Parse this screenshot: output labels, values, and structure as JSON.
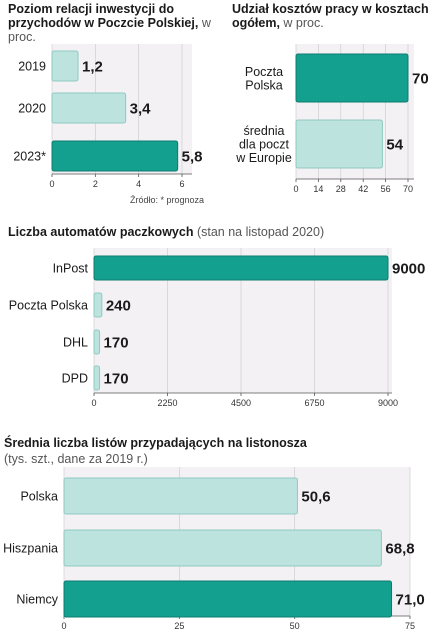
{
  "colors": {
    "bar_light": "#bde3de",
    "bar_light_stroke": "#8fcac2",
    "bar_dark": "#13a08f",
    "bar_dark_stroke": "#0d7d70",
    "plot_bg": "#f4f1f5",
    "axis": "#555555",
    "grid": "#c9c9c9"
  },
  "chart_data": [
    {
      "type": "bar",
      "orientation": "horizontal",
      "title": "Poziom relacji inwestycji do przychodów w Poczcie Polskiej,",
      "subtitle": "w proc.",
      "categories": [
        "2019",
        "2020",
        "2023*"
      ],
      "values": [
        1.2,
        3.4,
        5.8
      ],
      "value_labels": [
        "1,2",
        "3,4",
        "5,8"
      ],
      "highlight": [
        false,
        false,
        true
      ],
      "xlim": [
        0,
        6
      ],
      "xticks": [
        "0",
        "2",
        "4",
        "6"
      ],
      "grid": true,
      "source_note": "Źródło: * prognoza"
    },
    {
      "type": "bar",
      "orientation": "horizontal",
      "title": "Udział kosztów pracy w kosztach ogółem,",
      "subtitle": "w proc.",
      "categories": [
        [
          "Poczta",
          "Polska"
        ],
        [
          "średnia",
          "dla poczt",
          "w Europie"
        ]
      ],
      "values": [
        70,
        54
      ],
      "value_labels": [
        "70",
        "54"
      ],
      "highlight": [
        true,
        false
      ],
      "xlim": [
        0,
        70
      ],
      "xticks": [
        "0",
        "14",
        "28",
        "42",
        "56",
        "70"
      ],
      "grid": true
    },
    {
      "type": "bar",
      "orientation": "horizontal",
      "title": "Liczba automatów paczkowych",
      "subtitle": "(stan na listopad 2020)",
      "categories": [
        "InPost",
        "Poczta Polska",
        "DHL",
        "DPD"
      ],
      "values": [
        9000,
        240,
        170,
        170
      ],
      "value_labels": [
        "9000",
        "240",
        "170",
        "170"
      ],
      "highlight": [
        true,
        false,
        false,
        false
      ],
      "xlim": [
        0,
        9000
      ],
      "xticks": [
        "0",
        "2250",
        "4500",
        "6750",
        "9000"
      ],
      "grid": true
    },
    {
      "type": "bar",
      "orientation": "horizontal",
      "title": "Średnia liczba listów przypadających na listonosza",
      "subtitle": "(tys. szt., dane za 2019 r.)",
      "categories": [
        "Polska",
        "Hiszpania",
        "Niemcy"
      ],
      "values": [
        50.6,
        68.8,
        71.0
      ],
      "value_labels": [
        "50,6",
        "68,8",
        "71,0"
      ],
      "highlight": [
        false,
        false,
        true
      ],
      "xlim": [
        0,
        75
      ],
      "xticks": [
        "0",
        "25",
        "50",
        "75"
      ],
      "grid": true
    }
  ]
}
